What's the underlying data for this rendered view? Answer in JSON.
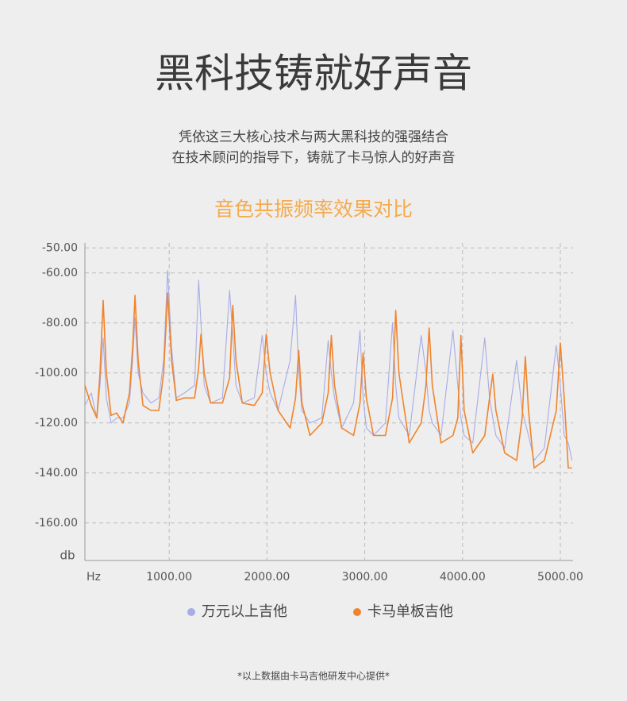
{
  "header": {
    "title": "黑科技铸就好声音",
    "subtitle": [
      "凭依这三大核心技术与两大黑科技的强强结合",
      "在技术顾问的指导下，铸就了卡马惊人的好声音"
    ]
  },
  "chart_data": {
    "type": "line",
    "title": "音色共振频率效果对比",
    "x_label": "Hz",
    "y_label": "db",
    "x": [
      138,
      203,
      260,
      292,
      325,
      357,
      406,
      463,
      528,
      593,
      626,
      650,
      683,
      731,
      813,
      894,
      943,
      984,
      1024,
      1073,
      1154,
      1260,
      1301,
      1325,
      1358,
      1423,
      1545,
      1618,
      1650,
      1683,
      1748,
      1870,
      1951,
      1992,
      2032,
      2114,
      2236,
      2292,
      2325,
      2357,
      2439,
      2561,
      2626,
      2658,
      2691,
      2764,
      2886,
      2951,
      2983,
      3016,
      3089,
      3211,
      3284,
      3317,
      3349,
      3455,
      3577,
      3626,
      3658,
      3691,
      3780,
      3902,
      3951,
      3983,
      4016,
      4105,
      4227,
      4276,
      4309,
      4341,
      4431,
      4553,
      4610,
      4642,
      4675,
      4732,
      4837,
      4959,
      5000,
      5040,
      5081,
      5120
    ],
    "series": [
      {
        "name": "万元以上吉他",
        "color": "#a9abe6",
        "values": [
          -113,
          -108,
          -118,
          -105,
          -86,
          -110,
          -120,
          -118,
          -118,
          -112,
          -95,
          -78,
          -100,
          -108,
          -112,
          -110,
          -95,
          -59,
          -90,
          -110,
          -108,
          -105,
          -63,
          -80,
          -105,
          -112,
          -110,
          -67,
          -85,
          -105,
          -112,
          -110,
          -85,
          -100,
          -108,
          -115,
          -95,
          -69,
          -100,
          -115,
          -120,
          -118,
          -87,
          -100,
          -110,
          -122,
          -112,
          -83,
          -110,
          -122,
          -125,
          -120,
          -80,
          -105,
          -118,
          -125,
          -85,
          -100,
          -115,
          -120,
          -125,
          -83,
          -105,
          -118,
          -125,
          -128,
          -86,
          -110,
          -118,
          -125,
          -130,
          -95,
          -115,
          -120,
          -125,
          -135,
          -130,
          -89,
          -105,
          -125,
          -128,
          -135
        ]
      },
      {
        "name": "卡马单板吉他",
        "color": "#f0842c",
        "values": [
          -105,
          -113,
          -118,
          -100,
          -71,
          -100,
          -117,
          -116,
          -120,
          -108,
          -90,
          -69,
          -95,
          -113,
          -115,
          -115,
          -100,
          -68,
          -95,
          -111,
          -110,
          -110,
          -98,
          -84.5,
          -100,
          -112,
          -112,
          -102,
          -73,
          -95,
          -112,
          -113,
          -108,
          -84.5,
          -100,
          -115,
          -122,
          -110,
          -91,
          -112,
          -125,
          -120,
          -108,
          -85,
          -105,
          -122,
          -125,
          -112,
          -92,
          -110,
          -125,
          -125,
          -110,
          -75,
          -100,
          -128,
          -120,
          -105,
          -82,
          -105,
          -128,
          -125,
          -118,
          -85,
          -115,
          -132,
          -125,
          -110,
          -100.5,
          -115,
          -132,
          -135,
          -118,
          -93.5,
          -115,
          -138,
          -135,
          -115,
          -88,
          -110,
          -138,
          -138
        ]
      }
    ],
    "xlim": [
      138,
      5130
    ],
    "ylim": [
      -175,
      -48
    ],
    "xticks": [
      {
        "value": 1000,
        "label": "1000.00"
      },
      {
        "value": 2000,
        "label": "2000.00"
      },
      {
        "value": 3000,
        "label": "3000.00"
      },
      {
        "value": 4000,
        "label": "4000.00"
      },
      {
        "value": 5000,
        "label": "5000.00"
      }
    ],
    "yticks": [
      {
        "value": -50,
        "label": "-50.00"
      },
      {
        "value": -60,
        "label": "-60.00"
      },
      {
        "value": -80,
        "label": "-80.00"
      },
      {
        "value": -100,
        "label": "-100.00"
      },
      {
        "value": -120,
        "label": "-120.00"
      },
      {
        "value": -140,
        "label": "-140.00"
      },
      {
        "value": -160,
        "label": "-160.00"
      }
    ],
    "grid": true,
    "legend": "bottom"
  },
  "footnote": "*以上数据由卡马吉他研发中心提供*"
}
